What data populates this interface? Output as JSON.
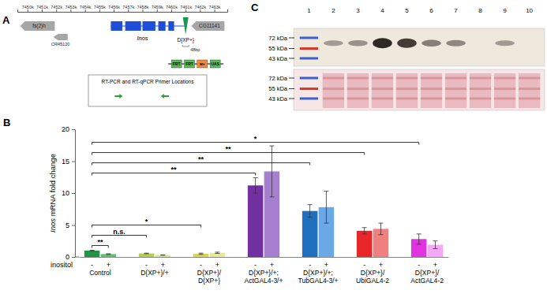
{
  "panel_labels": [
    "A",
    "B",
    "C"
  ],
  "genome": {
    "xlim": [
      7449.3,
      7463.9
    ],
    "xticks": [
      {
        "value": 7450,
        "label": "7450k"
      },
      {
        "value": 7451,
        "label": "7451k"
      },
      {
        "value": 7452,
        "label": "7452k"
      },
      {
        "value": 7453,
        "label": "7453k"
      },
      {
        "value": 7454,
        "label": "7454k"
      },
      {
        "value": 7455,
        "label": "7455k"
      },
      {
        "value": 7456,
        "label": "7456k"
      },
      {
        "value": 7457,
        "label": "7457k"
      },
      {
        "value": 7458,
        "label": "7458k"
      },
      {
        "value": 7459,
        "label": "7459k"
      },
      {
        "value": 7460,
        "label": "7460k"
      },
      {
        "value": 7461,
        "label": "7461k"
      },
      {
        "value": 7462,
        "label": "7462k"
      },
      {
        "value": 7463,
        "label": "7463k"
      }
    ],
    "genes": [
      {
        "name": "fs(2)h",
        "start": 7449.5,
        "end": 7451.9,
        "strand": "-",
        "color": "#a6a6a6"
      },
      {
        "name": "CR45120",
        "start": 7451.8,
        "end": 7452.8,
        "strand": "-",
        "color": "#a6a6a6"
      },
      {
        "name": "CG11141",
        "start": 7461.4,
        "end": 7463.7,
        "strand": "-",
        "color": "#a6a6a6"
      }
    ],
    "inos": {
      "name": "Inos",
      "start": 7455.8,
      "end": 7460.9,
      "exons": [
        [
          7455.8,
          7456.6
        ],
        [
          7456.8,
          7457.9
        ],
        [
          7458.0,
          7458.9
        ],
        [
          7459.1,
          7459.6
        ],
        [
          7459.8,
          7460.2
        ]
      ],
      "color": "#1f4fd8"
    },
    "insertion": {
      "name": "D{XP+}",
      "position": 7461.0,
      "color": "#1a9850"
    },
    "insertion_offset": "48bp",
    "construct": [
      {
        "label": "FRT",
        "color": "#5cb85c"
      },
      {
        "label": "FRT",
        "color": "#5cb85c"
      },
      {
        "label": "w+",
        "color": "#f0883e"
      },
      {
        "label": "UAS",
        "color": "#5cb85c"
      }
    ],
    "primer_box_title": "RT-PCR and RT-qPCR Primer Locations",
    "primers": {
      "positions": [
        7456.4,
        7459.5
      ],
      "color": "#2ca02c"
    }
  },
  "chart_data": {
    "type": "bar",
    "y_label": "Inos mRNA fold change",
    "row_label": "inositol",
    "categories": [
      "Control",
      "D{XP+}/+",
      "D{XP+}/D{XP+}",
      "D{XP+}/+; ActGAL4-3/+",
      "D{XP+}/+; TubGAL4-3/+",
      "D{XP+}/UbiGAL4-2",
      "D{XP+}/ActGAL4-2"
    ],
    "series": [
      {
        "name": "-",
        "colors": [
          "#1e9645",
          "#b0d050",
          "#d6d84a",
          "#7030a0",
          "#1f6fbf",
          "#e8262a",
          "#e233e2"
        ],
        "values": [
          1.0,
          0.55,
          0.5,
          11.2,
          7.2,
          4.1,
          2.8
        ],
        "errors": [
          0.05,
          0.05,
          0.1,
          1.2,
          1.0,
          0.5,
          0.8
        ]
      },
      {
        "name": "+",
        "colors": [
          "#5cc36b",
          "#d2e690",
          "#e6e89a",
          "#a67fd0",
          "#6ba8e6",
          "#f08080",
          "#f5a8f5"
        ],
        "values": [
          0.45,
          0.3,
          0.65,
          13.4,
          7.8,
          4.4,
          1.9
        ],
        "errors": [
          0.05,
          0.03,
          0.1,
          4.0,
          2.5,
          0.9,
          0.6
        ]
      }
    ],
    "ylim": [
      0,
      20
    ],
    "yticks": [
      0,
      5,
      10,
      15,
      20
    ],
    "grid": false,
    "comparisons": [
      {
        "label": "**",
        "from": {
          "category": "Control",
          "series": "-"
        },
        "to": {
          "category": "Control",
          "series": "+"
        }
      },
      {
        "label": "n.s.",
        "from": {
          "category": "Control",
          "series": "-"
        },
        "to": {
          "category": "D{XP+}/+",
          "series": "-"
        }
      },
      {
        "label": "*",
        "from": {
          "category": "Control",
          "series": "-"
        },
        "to": {
          "category": "D{XP+}/D{XP+}",
          "series": "-"
        }
      },
      {
        "label": "**",
        "from": {
          "category": "Control",
          "series": "-"
        },
        "to": {
          "category": "D{XP+}/+; ActGAL4-3/+",
          "series": "-"
        }
      },
      {
        "label": "**",
        "from": {
          "category": "Control",
          "series": "-"
        },
        "to": {
          "category": "D{XP+}/+; TubGAL4-3/+",
          "series": "-"
        }
      },
      {
        "label": "**",
        "from": {
          "category": "Control",
          "series": "-"
        },
        "to": {
          "category": "D{XP+}/UbiGAL4-2",
          "series": "-"
        }
      },
      {
        "label": "*",
        "from": {
          "category": "Control",
          "series": "-"
        },
        "to": {
          "category": "D{XP+}/ActGAL4-2",
          "series": "-"
        }
      }
    ]
  },
  "blot": {
    "lanes": [
      1,
      2,
      3,
      4,
      5,
      6,
      7,
      8,
      9,
      10
    ],
    "markers": [
      {
        "value": 72,
        "label": "72 kDa"
      },
      {
        "value": 55,
        "label": "55 kDa"
      },
      {
        "value": 43,
        "label": "43 kDa"
      }
    ],
    "band_kda": 63,
    "band_intensity": [
      0,
      0.4,
      0.45,
      1,
      0.9,
      0.55,
      0.5,
      0,
      0.4,
      0
    ]
  }
}
